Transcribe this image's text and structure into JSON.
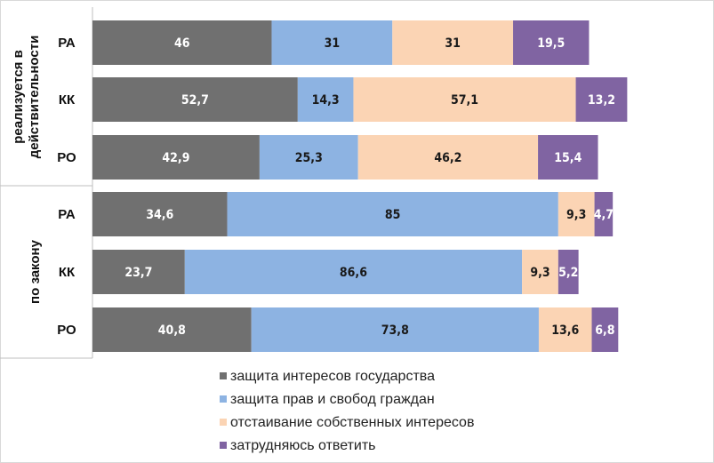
{
  "chart_data": {
    "type": "bar",
    "orientation": "horizontal",
    "stacked": true,
    "groups": [
      {
        "label": "реализуется в действительности",
        "categories": [
          "РА",
          "КК",
          "РО"
        ]
      },
      {
        "label": "по закону",
        "categories": [
          "РА",
          "КК",
          "РО"
        ]
      }
    ],
    "series": [
      {
        "name": "защита  интересов государства",
        "color": "#707070",
        "values": [
          46,
          52.7,
          42.9,
          34.6,
          23.7,
          40.8
        ],
        "labels": [
          "46",
          "52,7",
          "42,9",
          "34,6",
          "23,7",
          "40,8"
        ]
      },
      {
        "name": "защита прав и свобод   граждан",
        "color": "#8db3e2",
        "values": [
          31,
          14.3,
          25.3,
          85,
          86.6,
          73.8
        ],
        "labels": [
          "31",
          "14,3",
          "25,3",
          "85",
          "86,6",
          "73,8"
        ]
      },
      {
        "name": "отстаивание собственных интересов",
        "color": "#fbd4b4",
        "values": [
          31,
          57.1,
          46.2,
          9.3,
          9.3,
          13.6
        ],
        "labels": [
          "31",
          "57,1",
          "46,2",
          "9,3",
          "9,3",
          "13,6"
        ]
      },
      {
        "name": "затрудняюсь ответить",
        "color": "#8064a2",
        "values": [
          19.5,
          13.2,
          15.4,
          4.7,
          5.2,
          6.8
        ],
        "labels": [
          "19,5",
          "13,2",
          "15,4",
          "4,7",
          "5,2",
          "6,8"
        ]
      }
    ],
    "label_colors": [
      "#ffffff",
      "#1a1a1a",
      "#1a1a1a",
      "#ffffff"
    ],
    "legend_position": "bottom",
    "grid": false
  }
}
